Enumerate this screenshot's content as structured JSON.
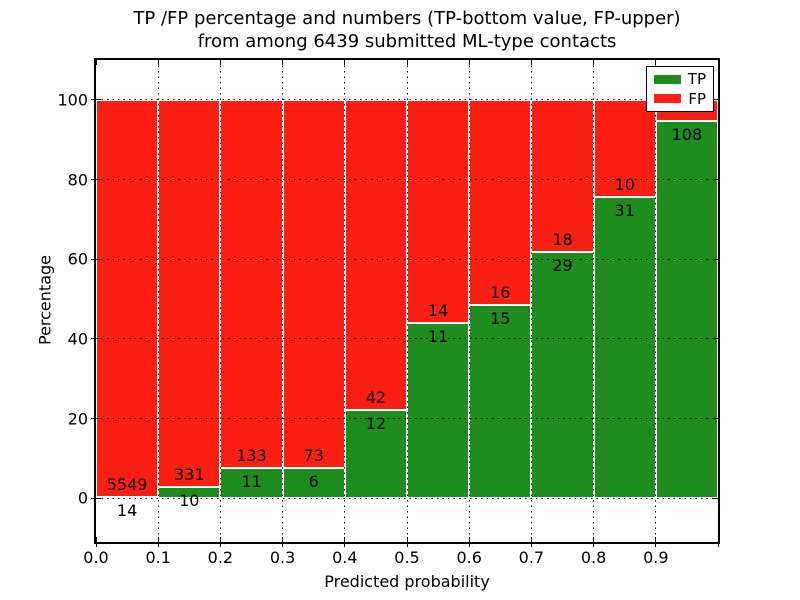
{
  "title": {
    "line1": "TP /FP percentage and numbers (TP-bottom value, FP-upper)",
    "line2": "from among 6439 submitted ML-type contacts"
  },
  "chart_data": {
    "type": "bar",
    "stacked": true,
    "normalized_to_100_percent": true,
    "title": "TP /FP percentage and numbers (TP-bottom value, FP-upper)\nfrom among 6439 submitted ML-type contacts",
    "xlabel": "Predicted probability",
    "ylabel": "Percentage",
    "xlim": [
      0.0,
      1.0
    ],
    "ylim": [
      -11,
      110
    ],
    "x_tick_labels": [
      "0.0",
      "0.1",
      "0.2",
      "0.3",
      "0.4",
      "0.5",
      "0.6",
      "0.7",
      "0.8",
      "0.9"
    ],
    "y_tick_values": [
      0,
      20,
      40,
      60,
      80,
      100
    ],
    "grid": "dotted",
    "bar_width": 0.1,
    "colors": {
      "tp": "#1e8c1e",
      "fp": "#fa1f12",
      "background": "#ffffff",
      "text": "#000000"
    },
    "legend": {
      "position": "upper right",
      "entries": [
        {
          "label": "TP",
          "color": "#1e8c1e"
        },
        {
          "label": "FP",
          "color": "#fa1f12"
        }
      ]
    },
    "bars": [
      {
        "x_start": 0.0,
        "tp_count": 14,
        "fp_count": 5549,
        "tp_pct": 0.25
      },
      {
        "x_start": 0.1,
        "tp_count": 10,
        "fp_count": 331,
        "tp_pct": 2.93
      },
      {
        "x_start": 0.2,
        "tp_count": 11,
        "fp_count": 133,
        "tp_pct": 7.64
      },
      {
        "x_start": 0.3,
        "tp_count": 6,
        "fp_count": 73,
        "tp_pct": 7.59
      },
      {
        "x_start": 0.4,
        "tp_count": 12,
        "fp_count": 42,
        "tp_pct": 22.22
      },
      {
        "x_start": 0.5,
        "tp_count": 11,
        "fp_count": 14,
        "tp_pct": 44.0
      },
      {
        "x_start": 0.6,
        "tp_count": 15,
        "fp_count": 16,
        "tp_pct": 48.39
      },
      {
        "x_start": 0.7,
        "tp_count": 29,
        "fp_count": 18,
        "tp_pct": 61.7
      },
      {
        "x_start": 0.8,
        "tp_count": 31,
        "fp_count": 10,
        "tp_pct": 75.61
      },
      {
        "x_start": 0.9,
        "tp_count": 108,
        "fp_count": null,
        "tp_pct": 94.74
      }
    ]
  }
}
